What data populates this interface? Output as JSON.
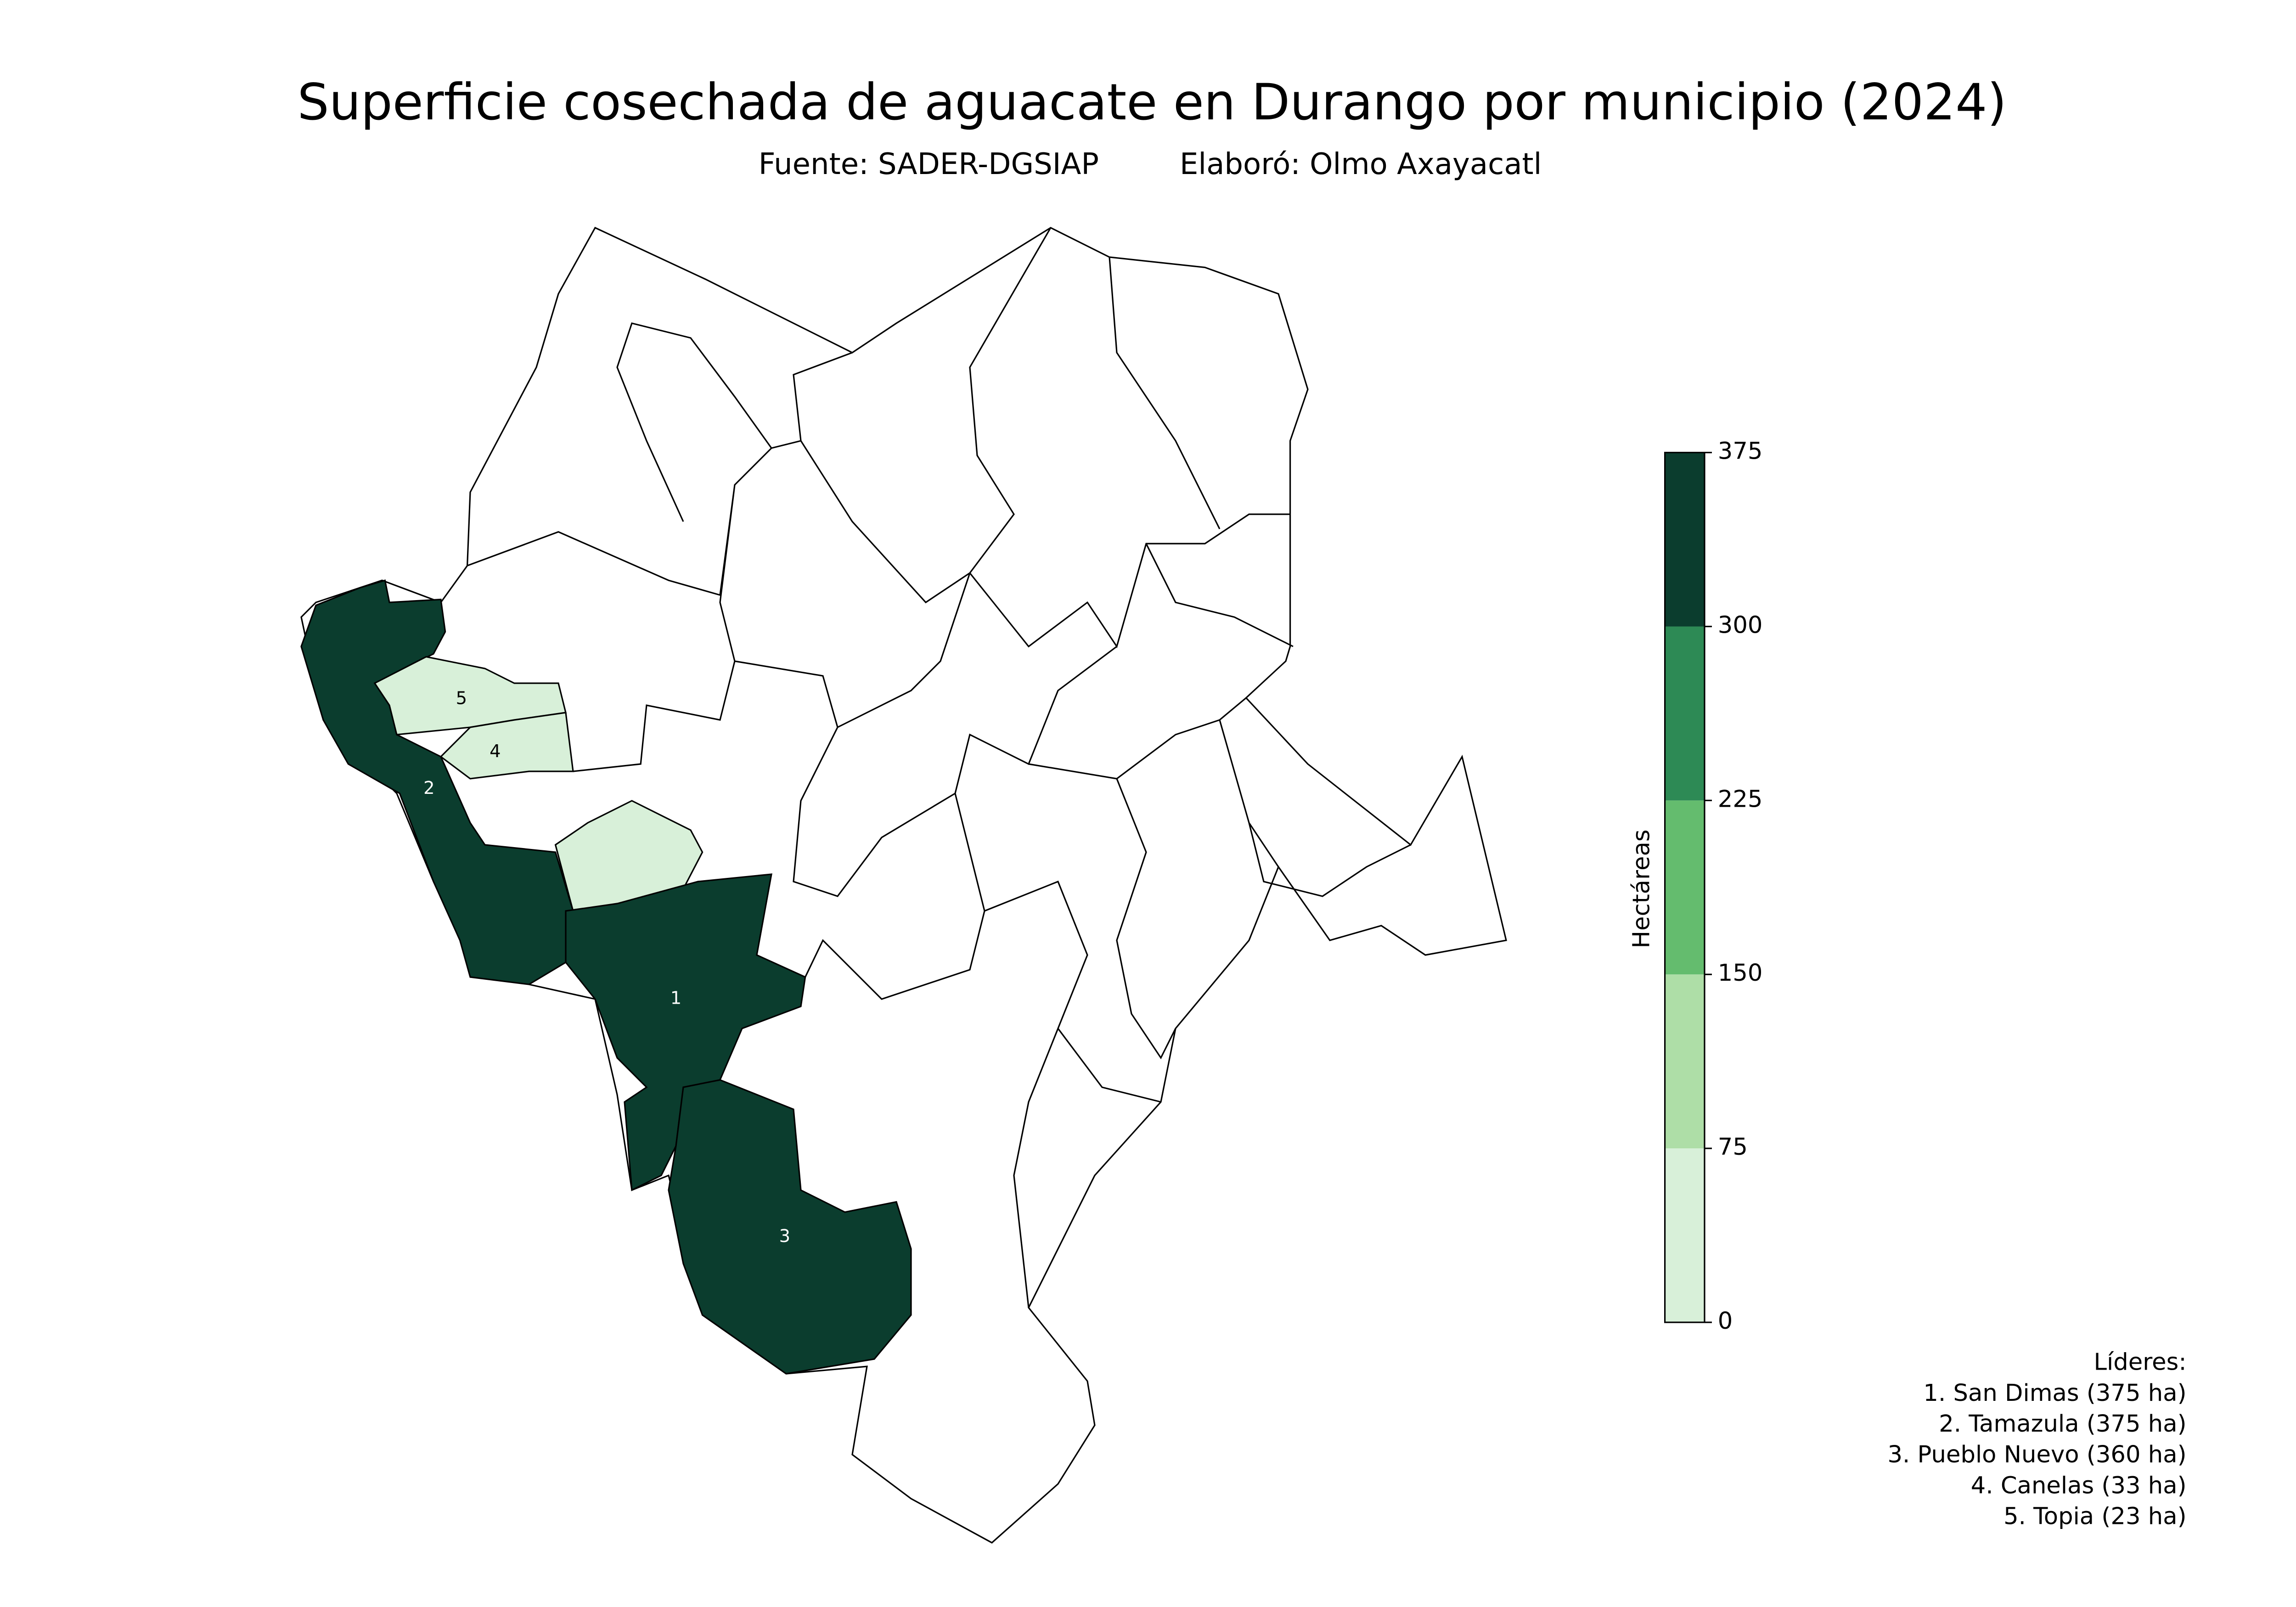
{
  "title": "Superficie cosechada de aguacate en Durango por municipio (2024)",
  "subtitle": {
    "source": "Fuente: SADER-DGSIAP",
    "author": "Elaboró: Olmo Axayacatl"
  },
  "colorbar": {
    "label": "Hectáreas",
    "ticks": [
      0,
      75,
      150,
      225,
      300,
      375
    ],
    "colors": [
      "#d8f0d9",
      "#aedea7",
      "#64bc6e",
      "#2d8a55",
      "#0b3d2e"
    ]
  },
  "leaders": {
    "title": "Líderes:",
    "items": [
      {
        "label": "1. San Dimas (375 ha)",
        "map_label": "1",
        "value": 375
      },
      {
        "label": "2. Tamazula (375 ha)",
        "map_label": "2",
        "value": 375
      },
      {
        "label": "3. Pueblo Nuevo (360 ha)",
        "map_label": "3",
        "value": 360
      },
      {
        "label": "4. Canelas (33 ha)",
        "map_label": "4",
        "value": 33
      },
      {
        "label": "5. Topia (23 ha)",
        "map_label": "5",
        "value": 23
      }
    ]
  },
  "unlabeled_regions": [
    {
      "value": 20
    }
  ]
}
